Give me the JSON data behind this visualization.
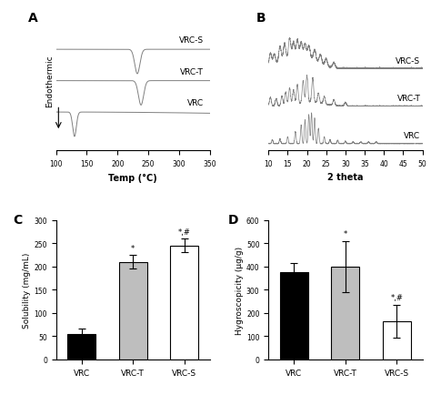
{
  "panel_labels": [
    "A",
    "B",
    "C",
    "D"
  ],
  "dsc": {
    "xlabel": "Temp (°C)",
    "ylabel": "Endothermic",
    "xlim": [
      100,
      350
    ],
    "xticks": [
      100,
      150,
      200,
      250,
      300,
      350
    ],
    "labels": [
      "VRC-S",
      "VRC-T",
      "VRC"
    ],
    "offsets": [
      1.8,
      0.9,
      0.0
    ],
    "scale": 0.7
  },
  "xrd": {
    "xlabel": "2 theta",
    "xlim": [
      10,
      50
    ],
    "xticks": [
      10,
      15,
      20,
      25,
      30,
      35,
      40,
      45,
      50
    ],
    "labels": [
      "VRC-S",
      "VRC-T",
      "VRC"
    ],
    "offsets": [
      1.7,
      0.85,
      0.0
    ],
    "scale": 0.7
  },
  "solubility": {
    "categories": [
      "VRC",
      "VRC-T",
      "VRC-S"
    ],
    "values": [
      55,
      210,
      245
    ],
    "errors": [
      12,
      15,
      15
    ],
    "colors": [
      "#000000",
      "#bebebe",
      "#ffffff"
    ],
    "ylabel": "Solubility (mg/mL)",
    "ylim": [
      0,
      300
    ],
    "yticks": [
      0,
      50,
      100,
      150,
      200,
      250,
      300
    ],
    "annotations": [
      "",
      "*",
      "*,#"
    ]
  },
  "hygroscopicity": {
    "categories": [
      "VRC",
      "VRC-T",
      "VRC-S"
    ],
    "values": [
      375,
      400,
      165
    ],
    "errors": [
      40,
      110,
      70
    ],
    "colors": [
      "#000000",
      "#bebebe",
      "#ffffff"
    ],
    "ylabel": "Hygroscopicity (μg/g)",
    "ylim": [
      0,
      600
    ],
    "yticks": [
      0,
      100,
      200,
      300,
      400,
      500,
      600
    ],
    "annotations": [
      "",
      "*",
      "*,#"
    ]
  },
  "line_color": "#808080",
  "background_color": "#ffffff",
  "font_size": 7,
  "label_font_size": 10
}
